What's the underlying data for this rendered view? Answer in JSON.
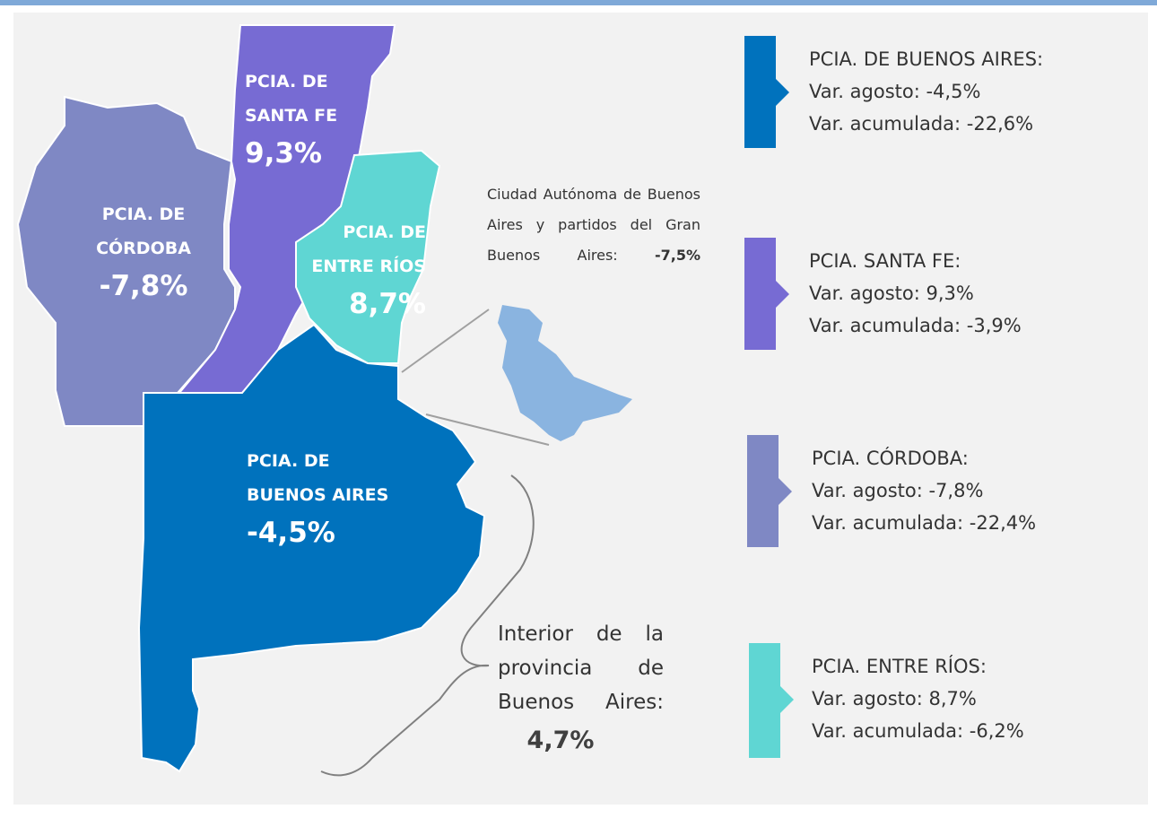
{
  "regions": [
    {
      "name_lines": [
        "PCIA. DE",
        "SANTA FE"
      ],
      "value": "9,3%"
    },
    {
      "name_lines": [
        "PCIA. DE",
        "CÓRDOBA"
      ],
      "value": "-7,8%"
    },
    {
      "name_lines": [
        "PCIA. DE",
        "ENTRE RÍOS"
      ],
      "value": "8,7%"
    },
    {
      "name_lines": [
        "PCIA. DE",
        "BUENOS AIRES"
      ],
      "value": "-4,5%"
    }
  ],
  "caba": {
    "label": "Ciudad Autónoma de Buenos Aires y partidos del Gran Buenos Aires:",
    "value": "-7,5%"
  },
  "interior": {
    "label": "Interior de la provincia de Buenos Aires:",
    "value": "4,7%"
  },
  "legend": [
    {
      "title": "PCIA. DE BUENOS AIRES:",
      "lines": [
        "Var. agosto: -4,5%",
        "Var. acumulada: -22,6%"
      ]
    },
    {
      "title": "PCIA. SANTA FE:",
      "lines": [
        "Var. agosto: 9,3%",
        "Var. acumulada: -3,9%"
      ]
    },
    {
      "title": "PCIA. CÓRDOBA:",
      "lines": [
        "Var. agosto: -7,8%",
        "Var. acumulada: -22,4%"
      ]
    },
    {
      "title": "PCIA. ENTRE RÍOS:",
      "lines": [
        "Var. agosto: 8,7%",
        "Var. acumulada: -6,2%"
      ]
    }
  ]
}
